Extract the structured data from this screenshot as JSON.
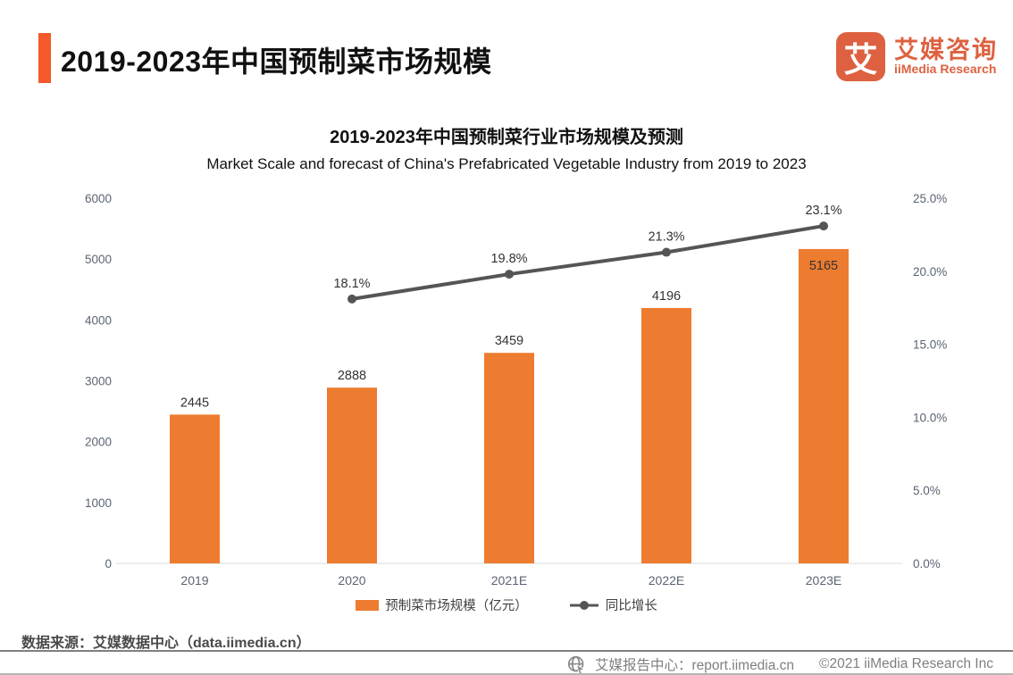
{
  "header": {
    "title": "2019-2023年中国预制菜市场规模",
    "logo": {
      "glyph": "艾",
      "brand_cn": "艾媒咨询",
      "brand_en": "iiMedia Research"
    }
  },
  "colors": {
    "accent_orange": "#F4592B",
    "bar_orange": "#ED7C30",
    "logo_orange": "#DD6140",
    "line_gray": "#555555",
    "tick_label": "#5A6472",
    "divider_gray": "#7F7F7F"
  },
  "chart_data": {
    "type": "bar",
    "title": "2019-2023年中国预制菜行业市场规模及预测",
    "subtitle": "Market Scale and forecast of China's Prefabricated Vegetable Industry from 2019 to 2023",
    "categories": [
      "2019",
      "2020",
      "2021E",
      "2022E",
      "2023E"
    ],
    "series": [
      {
        "name": "预制菜市场规模（亿元）",
        "type": "bar",
        "axis": "left",
        "color": "#ED7C30",
        "values": [
          2445,
          2888,
          3459,
          4196,
          5165
        ]
      },
      {
        "name": "同比增长",
        "type": "line",
        "axis": "right",
        "color": "#555555",
        "unit": "%",
        "values": [
          null,
          18.1,
          19.8,
          21.3,
          23.1
        ]
      }
    ],
    "left_axis": {
      "min": 0,
      "max": 6000,
      "step": 1000,
      "ticks": [
        "0",
        "1000",
        "2000",
        "3000",
        "4000",
        "5000",
        "6000"
      ]
    },
    "right_axis": {
      "min": 0,
      "max": 25,
      "step": 5,
      "ticks": [
        "0.0%",
        "5.0%",
        "10.0%",
        "15.0%",
        "20.0%",
        "25.0%"
      ]
    },
    "grid": false,
    "legend_position": "bottom",
    "value_label_inside": [
      false,
      false,
      false,
      false,
      true
    ]
  },
  "footer": {
    "source": "数据来源：艾媒数据中心（data.iimedia.cn）",
    "report_center": "艾媒报告中心：report.iimedia.cn",
    "copyright": "©2021  iiMedia Research Inc"
  }
}
